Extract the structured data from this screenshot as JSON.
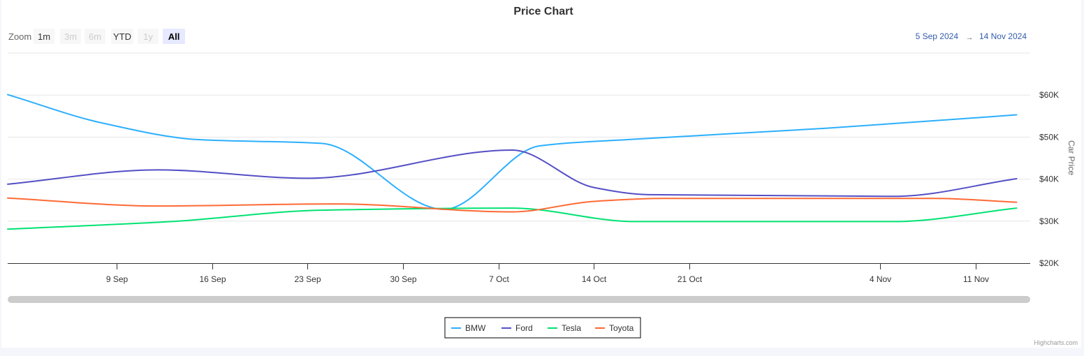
{
  "chart_data": {
    "type": "line",
    "title": "Price Chart",
    "xlabel": "",
    "ylabel": "Car Price",
    "x_range": [
      "2024-09-01",
      "2024-11-15"
    ],
    "ylim": [
      20000,
      70000
    ],
    "y_ticks": [
      20000,
      30000,
      40000,
      50000,
      60000
    ],
    "y_tick_labels": [
      "$20K",
      "$30K",
      "$40K",
      "$50K",
      "$60K"
    ],
    "x_ticks": [
      "2024-09-09",
      "2024-09-16",
      "2024-09-23",
      "2024-09-30",
      "2024-10-07",
      "2024-10-14",
      "2024-10-21",
      "2024-11-04",
      "2024-11-11"
    ],
    "x_tick_labels": [
      "9 Sep",
      "16 Sep",
      "23 Sep",
      "30 Sep",
      "7 Oct",
      "14 Oct",
      "21 Oct",
      "4 Nov",
      "11 Nov"
    ],
    "grid": true,
    "legend_position": "bottom-center",
    "series": [
      {
        "name": "BMW",
        "color": "#2caffe",
        "points": [
          {
            "x": "2024-09-01",
            "y": 60100
          },
          {
            "x": "2024-09-08",
            "y": 53300
          },
          {
            "x": "2024-09-15",
            "y": 49400
          },
          {
            "x": "2024-09-24",
            "y": 48500
          },
          {
            "x": "2024-10-03",
            "y": 32800
          },
          {
            "x": "2024-10-10",
            "y": 47900
          },
          {
            "x": "2024-10-17",
            "y": 49500
          },
          {
            "x": "2024-10-31",
            "y": 52100
          },
          {
            "x": "2024-11-14",
            "y": 55300
          }
        ]
      },
      {
        "name": "Ford",
        "color": "#544fc5",
        "points": [
          {
            "x": "2024-09-01",
            "y": 38800
          },
          {
            "x": "2024-09-12",
            "y": 42200
          },
          {
            "x": "2024-09-23",
            "y": 40200
          },
          {
            "x": "2024-10-08",
            "y": 46900
          },
          {
            "x": "2024-10-14",
            "y": 38000
          },
          {
            "x": "2024-10-18",
            "y": 36300
          },
          {
            "x": "2024-11-05",
            "y": 35900
          },
          {
            "x": "2024-11-14",
            "y": 40100
          }
        ]
      },
      {
        "name": "Tesla",
        "color": "#00e272",
        "points": [
          {
            "x": "2024-09-01",
            "y": 28100
          },
          {
            "x": "2024-09-13",
            "y": 29900
          },
          {
            "x": "2024-09-24",
            "y": 32600
          },
          {
            "x": "2024-10-08",
            "y": 33100
          },
          {
            "x": "2024-10-17",
            "y": 29900
          },
          {
            "x": "2024-11-05",
            "y": 29900
          },
          {
            "x": "2024-11-14",
            "y": 33100
          }
        ]
      },
      {
        "name": "Toyota",
        "color": "#fe6a35",
        "points": [
          {
            "x": "2024-09-01",
            "y": 35500
          },
          {
            "x": "2024-09-12",
            "y": 33600
          },
          {
            "x": "2024-09-25",
            "y": 34100
          },
          {
            "x": "2024-10-08",
            "y": 32200
          },
          {
            "x": "2024-10-14",
            "y": 34700
          },
          {
            "x": "2024-10-19",
            "y": 35400
          },
          {
            "x": "2024-11-08",
            "y": 35400
          },
          {
            "x": "2024-11-14",
            "y": 34500
          }
        ]
      }
    ]
  },
  "zoom": {
    "label": "Zoom",
    "buttons": [
      {
        "label": "1m",
        "state": "normal"
      },
      {
        "label": "3m",
        "state": "disabled"
      },
      {
        "label": "6m",
        "state": "disabled"
      },
      {
        "label": "YTD",
        "state": "normal"
      },
      {
        "label": "1y",
        "state": "disabled"
      },
      {
        "label": "All",
        "state": "selected"
      }
    ]
  },
  "range": {
    "from": "5 Sep 2024",
    "arrow": "→",
    "to": "14 Nov 2024"
  },
  "credits": "Highcharts.com",
  "colors": {
    "grid": "#e6e6e6",
    "axis": "#333333",
    "text": "#333333",
    "date": "#335cad",
    "zoom_selected_bg": "#e6e9ff",
    "zoom_bg": "#f7f7f7",
    "zoom_disabled_text": "#cccccc",
    "scrollbar": "#cccccc"
  }
}
